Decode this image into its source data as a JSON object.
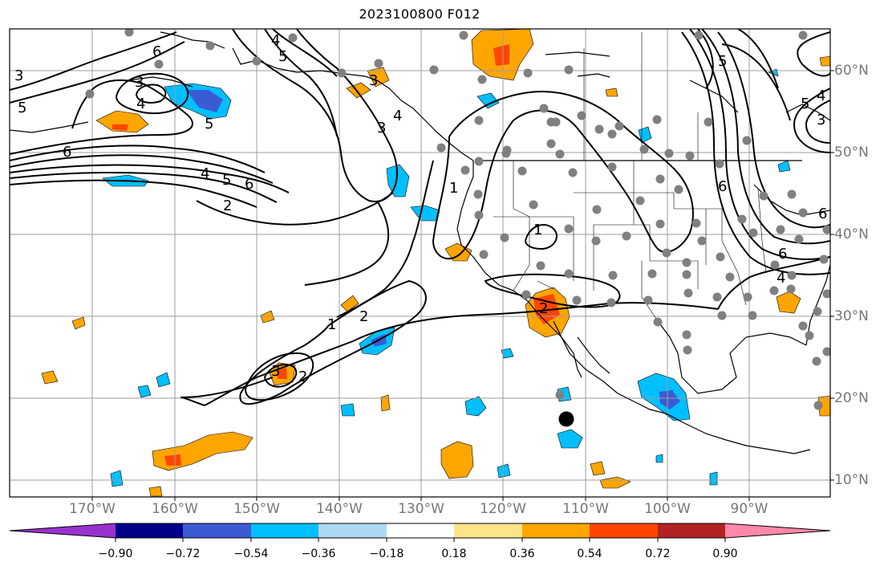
{
  "title": "2023100800 F012",
  "map": {
    "projection": "PlateCarree",
    "lon_range": [
      -180,
      -80
    ],
    "lat_range": [
      8,
      65
    ],
    "grid": true,
    "longitude_labels": [
      "170°W",
      "160°W",
      "150°W",
      "140°W",
      "130°W",
      "120°W",
      "110°W",
      "100°W",
      "90°W"
    ],
    "latitude_labels": [
      "60°N",
      "50°N",
      "40°N",
      "30°N",
      "20°N",
      "10°N"
    ],
    "contour_line_color": "#000000",
    "contour_labels_visible": [
      "1",
      "2",
      "3",
      "4",
      "5",
      "6"
    ],
    "station_marker_color": "#808080",
    "center_marker": {
      "lon": -112.5,
      "lat": 17.5,
      "color": "#000000"
    }
  },
  "colorbar": {
    "tick_labels": [
      "−0.90",
      "−0.72",
      "−0.54",
      "−0.36",
      "−0.18",
      "0.18",
      "0.36",
      "0.54",
      "0.72",
      "0.90"
    ],
    "colors": [
      "#9932cc",
      "#00008b",
      "#3b5bd4",
      "#00bfff",
      "#add8f5",
      "#ffffff",
      "#fce588",
      "#ffa500",
      "#ff4500",
      "#b22222",
      "#ff88aa"
    ]
  }
}
